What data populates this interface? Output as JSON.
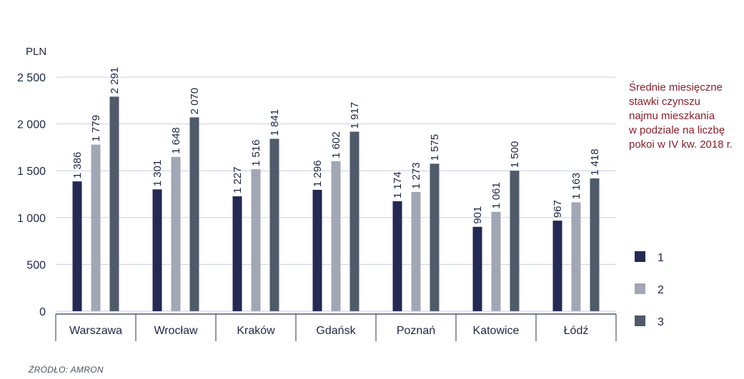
{
  "chart_data": {
    "type": "bar",
    "title_lines": [
      "Średnie miesięczne",
      "stawki czynszu",
      "najmu mieszkania",
      "w podziale na liczbę",
      "pokoi w IV kw. 2018 r."
    ],
    "unit": "PLN",
    "ylim": [
      0,
      2500
    ],
    "yticks": [
      0,
      500,
      1000,
      1500,
      2000,
      2500
    ],
    "ytick_labels": [
      "0",
      "500",
      "1 000",
      "1 500",
      "2 000",
      "2 500"
    ],
    "categories": [
      "Warszawa",
      "Wrocław",
      "Kraków",
      "Gdańsk",
      "Poznań",
      "Katowice",
      "Łódź"
    ],
    "series": [
      {
        "name": "1",
        "color": "#232a53",
        "values": [
          1386,
          1301,
          1227,
          1296,
          1174,
          901,
          967
        ],
        "labels": [
          "1 386",
          "1 301",
          "1 227",
          "1 296",
          "1 174",
          "901",
          "967"
        ]
      },
      {
        "name": "2",
        "color": "#a3a6b5",
        "values": [
          1779,
          1648,
          1516,
          1602,
          1273,
          1061,
          1163
        ],
        "labels": [
          "1 779",
          "1 648",
          "1 516",
          "1 602",
          "1 273",
          "1 061",
          "1 163"
        ]
      },
      {
        "name": "3",
        "color": "#4f5a6b",
        "values": [
          2291,
          2070,
          1841,
          1917,
          1575,
          1500,
          1418
        ],
        "labels": [
          "2 291",
          "2 070",
          "1 841",
          "1 917",
          "1 575",
          "1 500",
          "1 418"
        ]
      }
    ],
    "grid": true,
    "legend_position": "right",
    "source": "ŹRÓDŁO: AMRON"
  }
}
